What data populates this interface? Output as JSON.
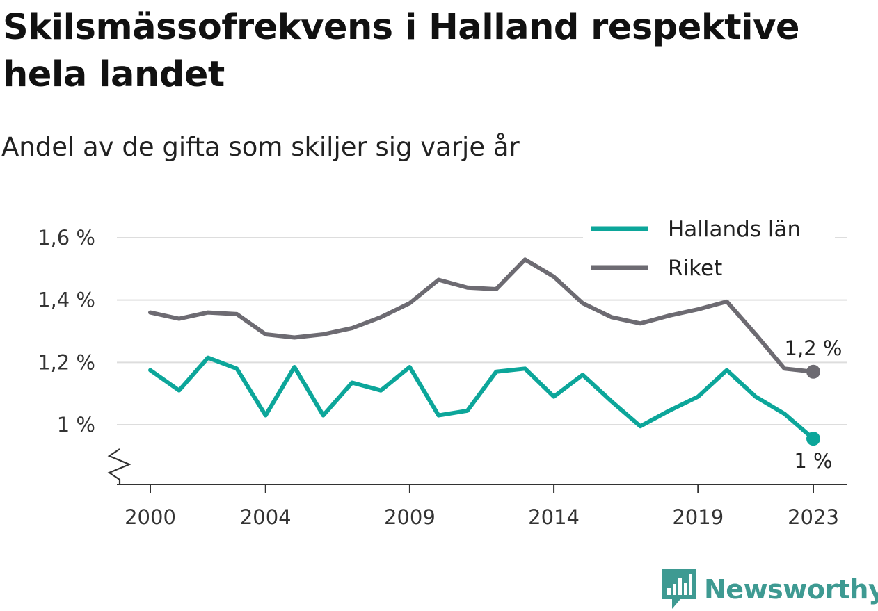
{
  "header": {
    "title": "Skilsmässofrekvens i Halland respektive hela landet",
    "subtitle": "Andel av de gifta som skiljer sig varje år"
  },
  "chart_data": {
    "type": "line",
    "x": [
      2000,
      2001,
      2002,
      2003,
      2004,
      2005,
      2006,
      2007,
      2008,
      2009,
      2010,
      2011,
      2012,
      2013,
      2014,
      2015,
      2016,
      2017,
      2018,
      2019,
      2020,
      2021,
      2022,
      2023
    ],
    "x_ticks": [
      2000,
      2004,
      2009,
      2014,
      2019,
      2023
    ],
    "x_tick_labels": [
      "2000",
      "2004",
      "2009",
      "2014",
      "2019",
      "2023"
    ],
    "y_ticks": [
      1.0,
      1.2,
      1.4,
      1.6
    ],
    "y_tick_labels": [
      "1 %",
      "1,2 %",
      "1,4 %",
      "1,6 %"
    ],
    "ylim": [
      0.81,
      1.6
    ],
    "axis_break": true,
    "grid": true,
    "legend": "top-right",
    "series": [
      {
        "name": "Hallands län",
        "color": "#0ca69a",
        "values": [
          1.175,
          1.11,
          1.215,
          1.18,
          1.03,
          1.185,
          1.03,
          1.135,
          1.11,
          1.185,
          1.03,
          1.045,
          1.17,
          1.18,
          1.09,
          1.16,
          1.075,
          0.995,
          1.045,
          1.09,
          1.175,
          1.09,
          1.035,
          0.955
        ],
        "end_label": "1 %"
      },
      {
        "name": "Riket",
        "color": "#6d6b72",
        "values": [
          1.36,
          1.34,
          1.36,
          1.355,
          1.29,
          1.28,
          1.29,
          1.31,
          1.345,
          1.39,
          1.465,
          1.44,
          1.435,
          1.53,
          1.475,
          1.39,
          1.345,
          1.325,
          1.35,
          1.37,
          1.395,
          1.29,
          1.18,
          1.17
        ],
        "end_label": "1,2 %"
      }
    ]
  },
  "brand": {
    "name": "Newsworthy",
    "color": "#3e9a92",
    "icon": "newsworthy-logo-icon"
  }
}
